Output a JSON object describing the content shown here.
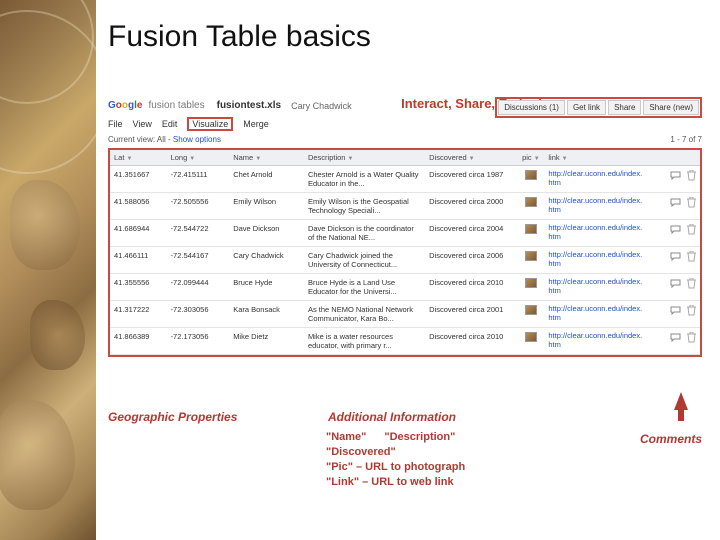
{
  "slide_title": "Fusion Table basics",
  "logo": {
    "brand": "Google",
    "product": "fusion tables"
  },
  "file": {
    "name": "fusiontest.xls",
    "owner": "Cary Chadwick"
  },
  "callouts": {
    "header": "Interact, Share, Embed",
    "geo": "Geographic Properties",
    "additional": "Additional Information",
    "comments": "Comments"
  },
  "header_buttons": [
    "Discussions (1)",
    "Get link",
    "Share",
    "Share (new)"
  ],
  "menu": [
    "File",
    "View",
    "Edit",
    "Visualize",
    "Merge"
  ],
  "menu_highlight_index": 3,
  "view_line_prefix": "Current view: All -",
  "view_show_options": "Show options",
  "page_counter": "1 - 7 of 7",
  "columns": [
    "Lat",
    "Long",
    "Name",
    "Description",
    "Discovered",
    "pic",
    "link"
  ],
  "link_url": "http://clear.uconn.edu/index.htm",
  "rows": [
    {
      "lat": "41.351667",
      "long": "-72.415111",
      "name": "Chet Arnold",
      "desc": "Chester Arnold is a Water Quality Educator in the...",
      "disc": "Discovered circa 1987"
    },
    {
      "lat": "41.588056",
      "long": "-72.505556",
      "name": "Emily Wilson",
      "desc": "Emily Wilson is the Geospatial Technology Speciali...",
      "disc": "Discovered circa 2000"
    },
    {
      "lat": "41.686944",
      "long": "-72.544722",
      "name": "Dave Dickson",
      "desc": "Dave Dickson is the coordinator of the National NE...",
      "disc": "Discovered circa 2004"
    },
    {
      "lat": "41.466111",
      "long": "-72.544167",
      "name": "Cary Chadwick",
      "desc": "Cary Chadwick joined the University of Connecticut...",
      "disc": "Discovered circa 2006"
    },
    {
      "lat": "41.355556",
      "long": "-72.099444",
      "name": "Bruce Hyde",
      "desc": "Bruce Hyde is a Land Use Educator for the Universi...",
      "disc": "Discovered circa 2010"
    },
    {
      "lat": "41.317222",
      "long": "-72.303056",
      "name": "Kara Bonsack",
      "desc": "As the NEMO National Network Communicator, Kara Bo...",
      "disc": "Discovered circa 2001"
    },
    {
      "lat": "41.866389",
      "long": "-72.173056",
      "name": "Mike Dietz",
      "desc": "Mike is a water resources educator, with primary r...",
      "disc": "Discovered circa 2010"
    }
  ],
  "sub_items": {
    "pair1a": "\"Name\"",
    "pair1b": "\"Description\"",
    "l2": "\"Discovered\"",
    "l3": "\"Pic\" – URL to photograph",
    "l4": "\"Link\" – URL to web link"
  }
}
